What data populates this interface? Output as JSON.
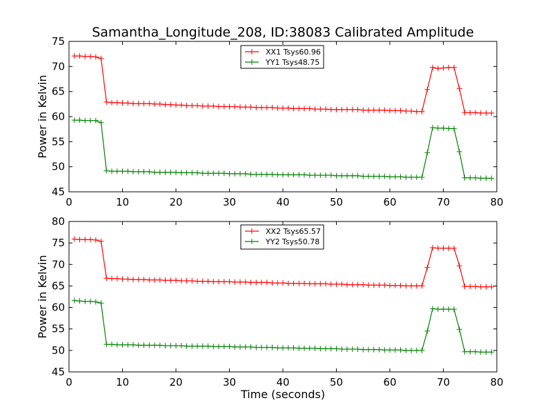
{
  "title": "Samantha_Longitude_208, ID:38083 Calibrated Amplitude",
  "colors": {
    "red": "#ff0000",
    "green": "#008000",
    "axes": "#000000",
    "background": "#ffffff"
  },
  "chart_data": [
    {
      "type": "line",
      "title": "Samantha_Longitude_208, ID:38083 Calibrated Amplitude",
      "xlabel": "",
      "ylabel": "Power in Kelvin",
      "xlim": [
        0,
        80
      ],
      "ylim": [
        45,
        75
      ],
      "xticks": [
        0,
        10,
        20,
        30,
        40,
        50,
        60,
        70,
        80
      ],
      "yticks": [
        45,
        50,
        55,
        60,
        65,
        70,
        75
      ],
      "grid": false,
      "legend_position": "top-center",
      "marker": "+",
      "x": [
        1,
        2,
        3,
        4,
        5,
        6,
        7,
        8,
        9,
        10,
        11,
        12,
        13,
        14,
        15,
        16,
        17,
        18,
        19,
        20,
        21,
        22,
        23,
        24,
        25,
        26,
        27,
        28,
        29,
        30,
        31,
        32,
        33,
        34,
        35,
        36,
        37,
        38,
        39,
        40,
        41,
        42,
        43,
        44,
        45,
        46,
        47,
        48,
        49,
        50,
        51,
        52,
        53,
        54,
        55,
        56,
        57,
        58,
        59,
        60,
        61,
        62,
        63,
        64,
        65,
        66,
        67,
        68,
        69,
        70,
        71,
        72,
        73,
        74,
        75,
        76,
        77,
        78,
        79
      ],
      "series": [
        {
          "name": "XX1 Tsys60.96",
          "color": "#ff0000",
          "values": [
            72.1,
            72.1,
            72.0,
            72.0,
            71.9,
            71.6,
            62.9,
            62.8,
            62.8,
            62.7,
            62.7,
            62.6,
            62.6,
            62.6,
            62.6,
            62.5,
            62.5,
            62.4,
            62.4,
            62.3,
            62.3,
            62.2,
            62.2,
            62.2,
            62.1,
            62.1,
            62.1,
            62.0,
            62.0,
            62.0,
            62.0,
            61.9,
            61.9,
            61.9,
            61.8,
            61.8,
            61.8,
            61.8,
            61.7,
            61.7,
            61.7,
            61.6,
            61.6,
            61.6,
            61.6,
            61.5,
            61.5,
            61.5,
            61.4,
            61.4,
            61.4,
            61.4,
            61.4,
            61.4,
            61.3,
            61.3,
            61.3,
            61.3,
            61.3,
            61.2,
            61.2,
            61.2,
            61.1,
            61.1,
            61.0,
            61.0,
            65.4,
            69.8,
            69.6,
            69.7,
            69.8,
            69.8,
            65.6,
            60.8,
            60.8,
            60.8,
            60.7,
            60.7,
            60.7
          ]
        },
        {
          "name": "YY1 Tsys48.75",
          "color": "#008000",
          "values": [
            59.3,
            59.3,
            59.2,
            59.2,
            59.2,
            58.8,
            49.2,
            49.1,
            49.1,
            49.1,
            49.1,
            49.0,
            49.0,
            49.0,
            49.0,
            48.9,
            48.9,
            48.9,
            48.9,
            48.9,
            48.8,
            48.8,
            48.8,
            48.8,
            48.7,
            48.7,
            48.7,
            48.7,
            48.7,
            48.6,
            48.6,
            48.6,
            48.6,
            48.5,
            48.5,
            48.5,
            48.5,
            48.5,
            48.4,
            48.4,
            48.4,
            48.4,
            48.4,
            48.4,
            48.3,
            48.3,
            48.3,
            48.3,
            48.3,
            48.2,
            48.2,
            48.2,
            48.2,
            48.2,
            48.1,
            48.1,
            48.1,
            48.1,
            48.1,
            48.0,
            48.0,
            48.0,
            47.9,
            47.9,
            47.9,
            47.9,
            52.8,
            57.8,
            57.7,
            57.7,
            57.6,
            57.6,
            53.0,
            47.8,
            47.8,
            47.8,
            47.7,
            47.7,
            47.7
          ]
        }
      ]
    },
    {
      "type": "line",
      "title": "",
      "xlabel": "Time (seconds)",
      "ylabel": "Power in Kelvin",
      "xlim": [
        0,
        80
      ],
      "ylim": [
        45,
        80
      ],
      "xticks": [
        0,
        10,
        20,
        30,
        40,
        50,
        60,
        70,
        80
      ],
      "yticks": [
        45,
        50,
        55,
        60,
        65,
        70,
        75,
        80
      ],
      "grid": false,
      "legend_position": "top-center",
      "marker": "+",
      "x": [
        1,
        2,
        3,
        4,
        5,
        6,
        7,
        8,
        9,
        10,
        11,
        12,
        13,
        14,
        15,
        16,
        17,
        18,
        19,
        20,
        21,
        22,
        23,
        24,
        25,
        26,
        27,
        28,
        29,
        30,
        31,
        32,
        33,
        34,
        35,
        36,
        37,
        38,
        39,
        40,
        41,
        42,
        43,
        44,
        45,
        46,
        47,
        48,
        49,
        50,
        51,
        52,
        53,
        54,
        55,
        56,
        57,
        58,
        59,
        60,
        61,
        62,
        63,
        64,
        65,
        66,
        67,
        68,
        69,
        70,
        71,
        72,
        73,
        74,
        75,
        76,
        77,
        78,
        79
      ],
      "series": [
        {
          "name": "XX2 Tsys65.57",
          "color": "#ff0000",
          "values": [
            75.9,
            75.8,
            75.8,
            75.8,
            75.7,
            75.4,
            66.8,
            66.7,
            66.7,
            66.6,
            66.6,
            66.5,
            66.5,
            66.5,
            66.4,
            66.4,
            66.4,
            66.3,
            66.3,
            66.3,
            66.2,
            66.2,
            66.2,
            66.1,
            66.1,
            66.1,
            66.0,
            66.0,
            66.0,
            66.0,
            65.9,
            65.9,
            65.9,
            65.8,
            65.8,
            65.8,
            65.8,
            65.7,
            65.7,
            65.7,
            65.6,
            65.6,
            65.6,
            65.6,
            65.5,
            65.5,
            65.5,
            65.5,
            65.4,
            65.4,
            65.4,
            65.3,
            65.3,
            65.3,
            65.3,
            65.2,
            65.2,
            65.2,
            65.2,
            65.1,
            65.1,
            65.1,
            65.0,
            65.0,
            65.0,
            65.0,
            69.3,
            73.9,
            73.8,
            73.8,
            73.8,
            73.8,
            69.7,
            64.9,
            64.9,
            64.9,
            64.8,
            64.8,
            64.8
          ]
        },
        {
          "name": "YY2 Tsys50.78",
          "color": "#008000",
          "values": [
            61.6,
            61.5,
            61.4,
            61.4,
            61.3,
            61.0,
            51.4,
            51.4,
            51.3,
            51.3,
            51.3,
            51.3,
            51.2,
            51.2,
            51.2,
            51.2,
            51.2,
            51.1,
            51.1,
            51.1,
            51.1,
            51.0,
            51.0,
            51.0,
            51.0,
            51.0,
            50.9,
            50.9,
            50.9,
            50.9,
            50.8,
            50.8,
            50.8,
            50.8,
            50.7,
            50.7,
            50.7,
            50.7,
            50.6,
            50.6,
            50.6,
            50.6,
            50.5,
            50.5,
            50.5,
            50.5,
            50.4,
            50.4,
            50.4,
            50.4,
            50.3,
            50.3,
            50.3,
            50.3,
            50.2,
            50.2,
            50.2,
            50.2,
            50.1,
            50.1,
            50.1,
            50.1,
            50.0,
            50.0,
            50.0,
            50.0,
            54.5,
            59.7,
            59.6,
            59.6,
            59.6,
            59.6,
            54.9,
            49.7,
            49.7,
            49.7,
            49.6,
            49.6,
            49.6
          ]
        }
      ]
    }
  ]
}
